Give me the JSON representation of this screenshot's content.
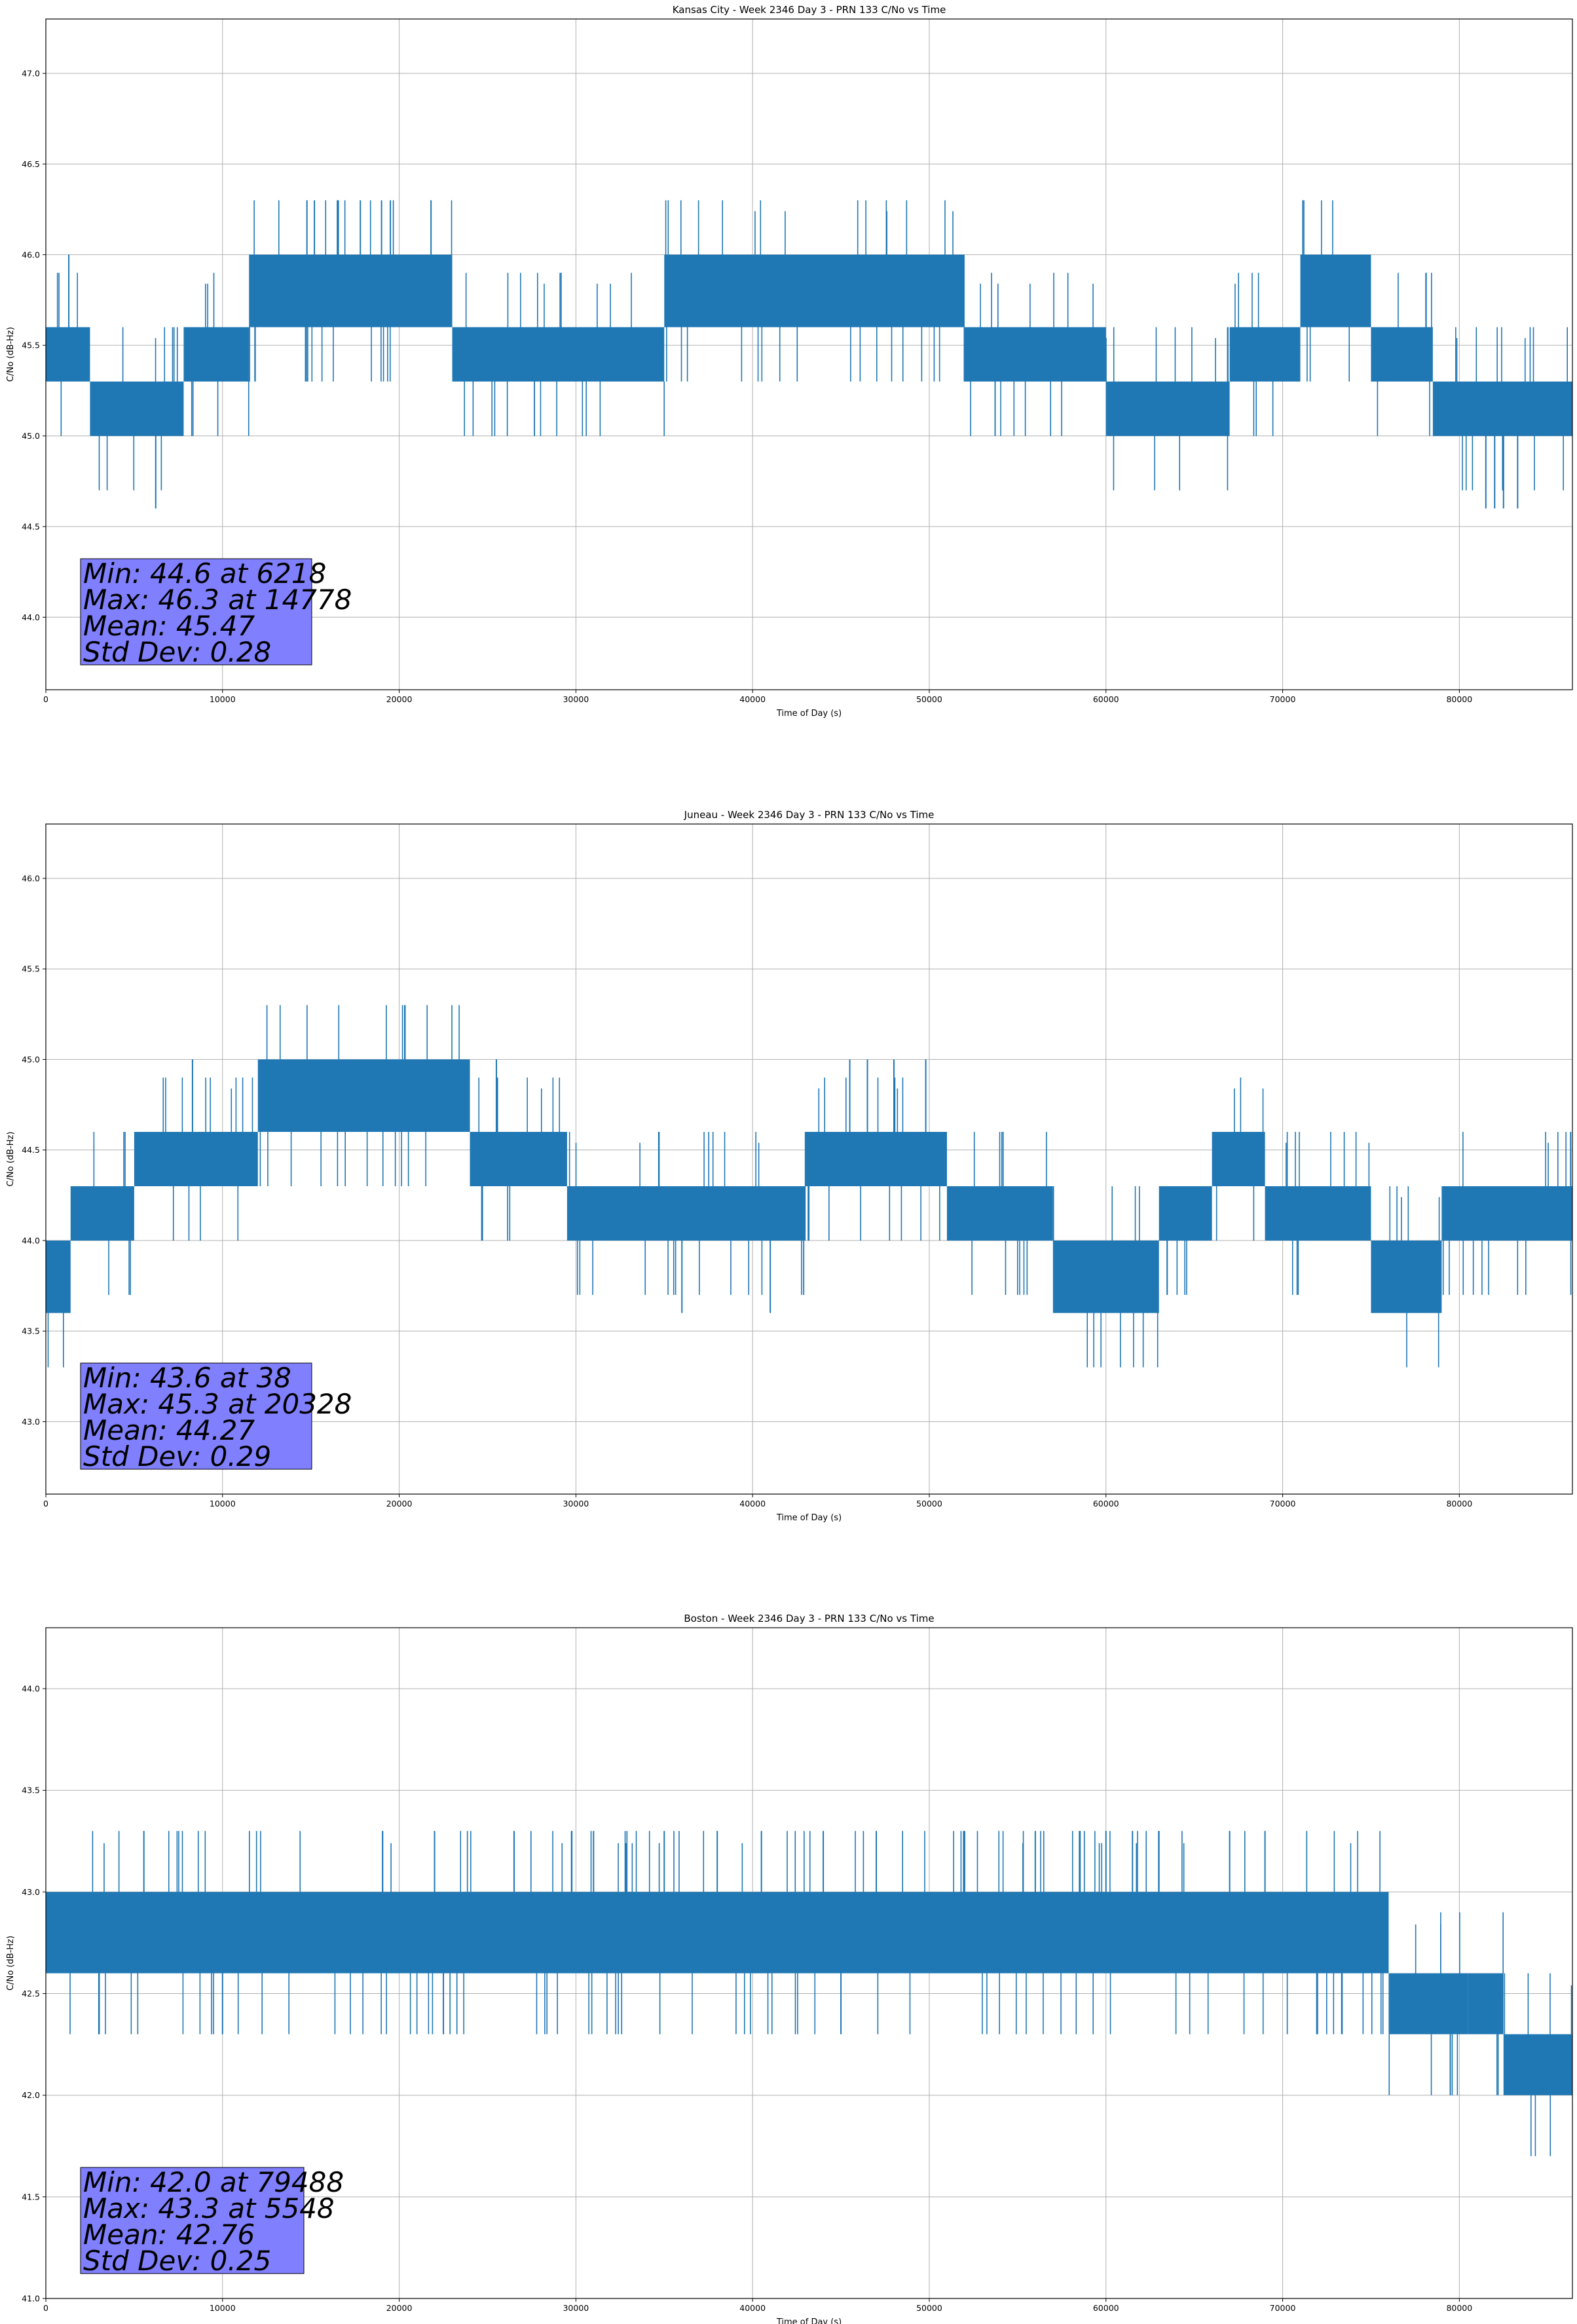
{
  "figure": {
    "line_color": "#1f77b4",
    "stats_box_color": "#8080ff"
  },
  "chart_data": [
    {
      "type": "line",
      "title": "Kansas City - Week 2346 Day 3 - PRN 133 C/No vs Time",
      "xlabel": "Time of Day (s)",
      "ylabel": "C/No (dB-Hz)",
      "xlim": [
        0,
        86400
      ],
      "ylim": [
        43.6,
        47.3
      ],
      "xticks": [
        0,
        10000,
        20000,
        30000,
        40000,
        50000,
        60000,
        70000,
        80000
      ],
      "xtick_labels": [
        "0",
        "10000",
        "20000",
        "30000",
        "40000",
        "50000",
        "60000",
        "70000",
        "80000"
      ],
      "yticks": [
        44.0,
        44.5,
        45.0,
        45.5,
        46.0,
        46.5,
        47.0
      ],
      "ytick_labels": [
        "44.0",
        "44.5",
        "45.0",
        "45.5",
        "46.0",
        "46.5",
        "47.0"
      ],
      "grid": true,
      "stats": [
        "Min: 44.6 at 6218",
        "Max: 46.3 at 14778",
        "Mean: 45.47",
        "Std Dev: 0.28"
      ],
      "segments": [
        {
          "x": [
            0,
            2500
          ],
          "band": [
            45.3,
            45.6
          ]
        },
        {
          "x": [
            2500,
            7800
          ],
          "band": [
            45.0,
            45.3
          ]
        },
        {
          "x": [
            7800,
            11500
          ],
          "band": [
            45.3,
            45.6
          ]
        },
        {
          "x": [
            11500,
            23000
          ],
          "band": [
            45.6,
            46.0
          ]
        },
        {
          "x": [
            23000,
            35000
          ],
          "band": [
            45.3,
            45.6
          ]
        },
        {
          "x": [
            35000,
            52000
          ],
          "band": [
            45.6,
            46.0
          ]
        },
        {
          "x": [
            52000,
            60000
          ],
          "band": [
            45.3,
            45.6
          ]
        },
        {
          "x": [
            60000,
            67000
          ],
          "band": [
            45.0,
            45.3
          ]
        },
        {
          "x": [
            67000,
            71000
          ],
          "band": [
            45.3,
            45.6
          ]
        },
        {
          "x": [
            71000,
            75000
          ],
          "band": [
            45.6,
            46.0
          ]
        },
        {
          "x": [
            75000,
            78500
          ],
          "band": [
            45.3,
            45.6
          ]
        },
        {
          "x": [
            78500,
            86400
          ],
          "band": [
            45.0,
            45.3
          ]
        }
      ],
      "spikes": [
        {
          "x": 1300,
          "y": 46.0
        },
        {
          "x": 6218,
          "y": 44.6
        },
        {
          "x": 14778,
          "y": 46.3
        },
        {
          "x": 15200,
          "y": 46.3
        },
        {
          "x": 16500,
          "y": 46.3
        },
        {
          "x": 17800,
          "y": 46.3
        },
        {
          "x": 19000,
          "y": 46.3
        },
        {
          "x": 19500,
          "y": 46.3
        },
        {
          "x": 21800,
          "y": 46.3
        },
        {
          "x": 81500,
          "y": 44.6
        },
        {
          "x": 82000,
          "y": 44.6
        },
        {
          "x": 82500,
          "y": 44.6
        },
        {
          "x": 83300,
          "y": 44.6
        }
      ]
    },
    {
      "type": "line",
      "title": "Juneau - Week 2346 Day 3 - PRN 133 C/No vs Time",
      "xlabel": "Time of Day (s)",
      "ylabel": "C/No (dB-Hz)",
      "xlim": [
        0,
        86400
      ],
      "ylim": [
        42.6,
        46.3
      ],
      "xticks": [
        0,
        10000,
        20000,
        30000,
        40000,
        50000,
        60000,
        70000,
        80000
      ],
      "xtick_labels": [
        "0",
        "10000",
        "20000",
        "30000",
        "40000",
        "50000",
        "60000",
        "70000",
        "80000"
      ],
      "yticks": [
        43.0,
        43.5,
        44.0,
        44.5,
        45.0,
        45.5,
        46.0
      ],
      "ytick_labels": [
        "43.0",
        "43.5",
        "44.0",
        "44.5",
        "45.0",
        "45.5",
        "46.0"
      ],
      "grid": true,
      "stats": [
        "Min: 43.6 at 38",
        "Max: 45.3 at 20328",
        "Mean: 44.27",
        "Std Dev: 0.29"
      ],
      "segments": [
        {
          "x": [
            0,
            1400
          ],
          "band": [
            43.6,
            44.0
          ]
        },
        {
          "x": [
            1400,
            5000
          ],
          "band": [
            44.0,
            44.3
          ]
        },
        {
          "x": [
            5000,
            12000
          ],
          "band": [
            44.3,
            44.6
          ]
        },
        {
          "x": [
            12000,
            24000
          ],
          "band": [
            44.6,
            45.0
          ]
        },
        {
          "x": [
            24000,
            29500
          ],
          "band": [
            44.3,
            44.6
          ]
        },
        {
          "x": [
            29500,
            43000
          ],
          "band": [
            44.0,
            44.3
          ]
        },
        {
          "x": [
            43000,
            51000
          ],
          "band": [
            44.3,
            44.6
          ]
        },
        {
          "x": [
            51000,
            57000
          ],
          "band": [
            44.0,
            44.3
          ]
        },
        {
          "x": [
            57000,
            63000
          ],
          "band": [
            43.6,
            44.0
          ]
        },
        {
          "x": [
            63000,
            66000
          ],
          "band": [
            44.0,
            44.3
          ]
        },
        {
          "x": [
            66000,
            69000
          ],
          "band": [
            44.3,
            44.6
          ]
        },
        {
          "x": [
            69000,
            75000
          ],
          "band": [
            44.0,
            44.3
          ]
        },
        {
          "x": [
            75000,
            79000
          ],
          "band": [
            43.6,
            44.0
          ]
        },
        {
          "x": [
            79000,
            86400
          ],
          "band": [
            44.0,
            44.3
          ]
        }
      ],
      "spikes": [
        {
          "x": 20328,
          "y": 45.3
        },
        {
          "x": 8300,
          "y": 45.0
        },
        {
          "x": 25500,
          "y": 45.0
        },
        {
          "x": 45500,
          "y": 45.0
        },
        {
          "x": 46500,
          "y": 45.0
        },
        {
          "x": 48000,
          "y": 45.0
        },
        {
          "x": 49800,
          "y": 45.0
        },
        {
          "x": 36000,
          "y": 43.6
        },
        {
          "x": 41000,
          "y": 43.6
        },
        {
          "x": 86300,
          "y": 44.6
        }
      ]
    },
    {
      "type": "line",
      "title": "Boston - Week 2346 Day 3 - PRN 133 C/No vs Time",
      "xlabel": "Time of Day (s)",
      "ylabel": "C/No (dB-Hz)",
      "xlim": [
        0,
        86400
      ],
      "ylim": [
        41.0,
        44.3
      ],
      "xticks": [
        0,
        10000,
        20000,
        30000,
        40000,
        50000,
        60000,
        70000,
        80000
      ],
      "xtick_labels": [
        "0",
        "10000",
        "20000",
        "30000",
        "40000",
        "50000",
        "60000",
        "70000",
        "80000"
      ],
      "yticks": [
        41.0,
        41.5,
        42.0,
        42.5,
        43.0,
        43.5,
        44.0
      ],
      "ytick_labels": [
        "41.0",
        "41.5",
        "42.0",
        "42.5",
        "43.0",
        "43.5",
        "44.0"
      ],
      "grid": true,
      "stats": [
        "Min: 42.0 at 79488",
        "Max: 43.3 at 5548",
        "Mean: 42.76",
        "Std Dev: 0.25"
      ],
      "segments": [
        {
          "x": [
            0,
            76000
          ],
          "band": [
            42.6,
            43.0
          ]
        },
        {
          "x": [
            76000,
            80500
          ],
          "band": [
            42.3,
            42.6
          ]
        },
        {
          "x": [
            80500,
            82500
          ],
          "band": [
            42.3,
            42.6
          ]
        },
        {
          "x": [
            82500,
            86400
          ],
          "band": [
            42.0,
            42.3
          ]
        }
      ],
      "spikes": [
        {
          "x": 5548,
          "y": 43.3
        },
        {
          "x": 22000,
          "y": 43.3
        },
        {
          "x": 26500,
          "y": 43.3
        },
        {
          "x": 31000,
          "y": 43.3
        },
        {
          "x": 35000,
          "y": 43.3
        },
        {
          "x": 38000,
          "y": 43.3
        },
        {
          "x": 40500,
          "y": 43.3
        },
        {
          "x": 44000,
          "y": 43.3
        },
        {
          "x": 47000,
          "y": 43.3
        },
        {
          "x": 52000,
          "y": 43.3
        },
        {
          "x": 56000,
          "y": 43.3
        },
        {
          "x": 58500,
          "y": 43.3
        },
        {
          "x": 60000,
          "y": 43.3
        },
        {
          "x": 61500,
          "y": 43.3
        },
        {
          "x": 63000,
          "y": 43.3
        },
        {
          "x": 67000,
          "y": 43.3
        },
        {
          "x": 69000,
          "y": 43.3
        },
        {
          "x": 79488,
          "y": 42.0
        },
        {
          "x": 3000,
          "y": 42.3
        },
        {
          "x": 10000,
          "y": 42.3
        },
        {
          "x": 22500,
          "y": 42.3
        },
        {
          "x": 45000,
          "y": 42.3
        }
      ]
    }
  ]
}
